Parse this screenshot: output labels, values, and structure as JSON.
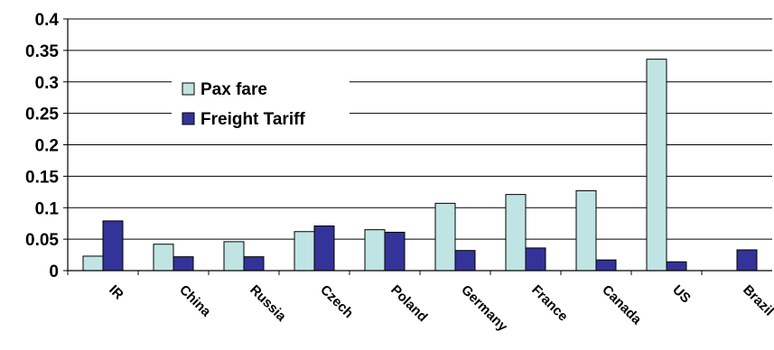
{
  "chart_data": {
    "type": "bar",
    "title": "",
    "xlabel": "",
    "ylabel": "",
    "ylim": [
      0,
      0.4
    ],
    "yticks": [
      "0",
      "0.05",
      "0.1",
      "0.15",
      "0.2",
      "0.25",
      "0.3",
      "0.35",
      "0.4"
    ],
    "ytick_values": [
      0,
      0.05,
      0.1,
      0.15,
      0.2,
      0.25,
      0.3,
      0.35,
      0.4
    ],
    "grid": true,
    "legend_position": "upper-left",
    "categories": [
      "IR",
      "China",
      "Russia",
      "Czech",
      "Poland",
      "Germany",
      "France",
      "Canada",
      "US",
      "Brazil"
    ],
    "series": [
      {
        "name": "Pax fare",
        "color": "#c0e4e4",
        "values": [
          0.023,
          0.042,
          0.046,
          0.062,
          0.065,
          0.107,
          0.121,
          0.127,
          0.336,
          0
        ]
      },
      {
        "name": "Freight Tariff",
        "color": "#333399",
        "values": [
          0.079,
          0.022,
          0.022,
          0.071,
          0.061,
          0.032,
          0.036,
          0.017,
          0.014,
          0.033
        ]
      }
    ]
  }
}
